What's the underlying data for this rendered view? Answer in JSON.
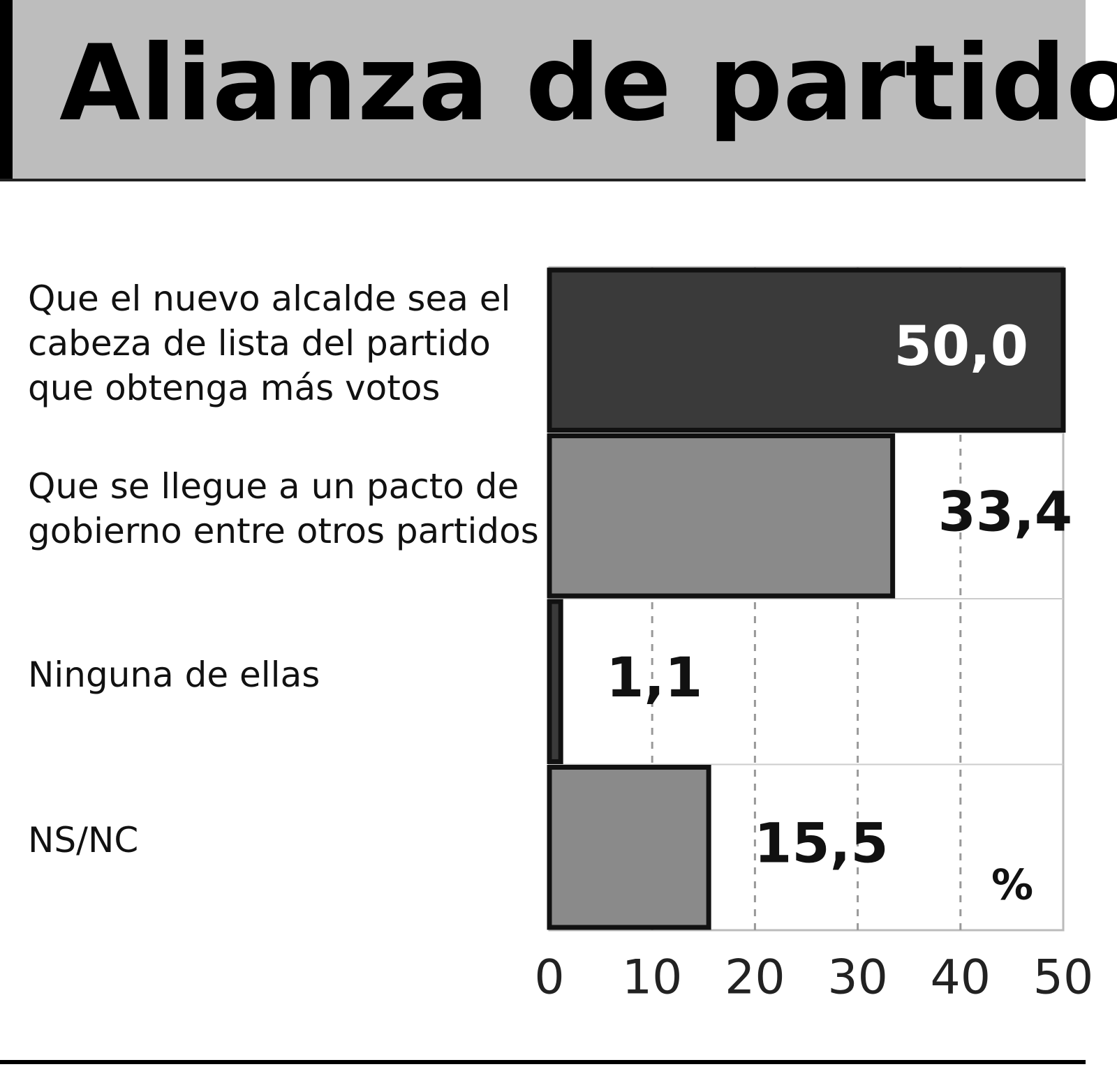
{
  "chart_data": {
    "type": "barh",
    "title": "Alianza de partidos",
    "categories": [
      "Que el nuevo alcalde sea el cabeza de lista del partido que obtenga más votos",
      "Que se llegue a un pacto de gobierno entre otros partidos",
      "Ninguna de ellas",
      "NS/NC"
    ],
    "values": [
      50.0,
      33.4,
      1.1,
      15.5
    ],
    "value_labels": [
      "50,0",
      "33,4",
      "1,1",
      "15,5"
    ],
    "colors": [
      "#3a3a3a",
      "#8a8a8a",
      "#3a3a3a",
      "#8a8a8a"
    ],
    "unit": "%",
    "xlim": [
      0,
      50
    ],
    "xticks": [
      0,
      10,
      20,
      30,
      40,
      50
    ],
    "grid": true
  }
}
